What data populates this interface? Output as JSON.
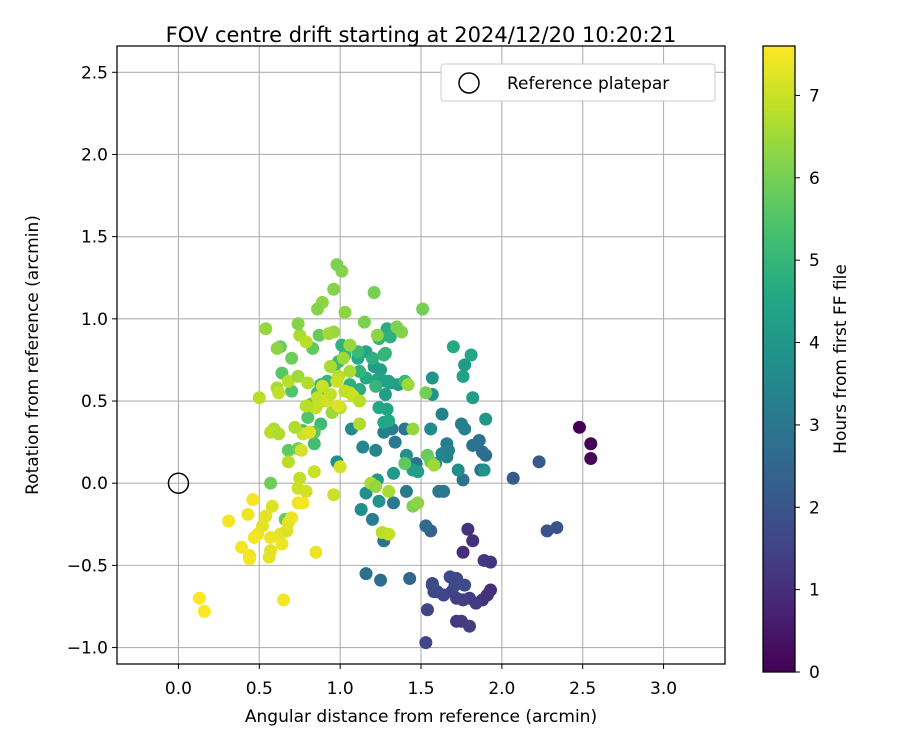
{
  "chart_data": {
    "type": "scatter",
    "title": "FOV centre drift starting at 2024/12/20 10:20:21",
    "xlabel": "Angular distance from reference (arcmin)",
    "ylabel": "Rotation from reference (arcmin)",
    "xlim": [
      -0.38,
      3.38
    ],
    "ylim": [
      -1.1,
      2.66
    ],
    "xticks": [
      "0.0",
      "0.5",
      "1.0",
      "1.5",
      "2.0",
      "2.5",
      "3.0"
    ],
    "yticks": [
      "−1.0",
      "−0.5",
      "0.0",
      "0.5",
      "1.0",
      "1.5",
      "2.0",
      "2.5"
    ],
    "grid": true,
    "legend": {
      "position": "top-right",
      "entries": [
        "Reference platepar"
      ]
    },
    "reference_point": {
      "x": 0.0,
      "y": 0.0
    },
    "colorbar": {
      "label": "Hours from first FF file",
      "range": [
        0,
        7.6
      ],
      "ticks": [
        "0",
        "1",
        "2",
        "3",
        "4",
        "5",
        "6",
        "7"
      ],
      "colormap": "viridis"
    },
    "points": [
      [
        2.48,
        0.34,
        0.0
      ],
      [
        2.55,
        0.24,
        0.05
      ],
      [
        2.55,
        0.15,
        0.1
      ],
      [
        2.34,
        -0.27,
        1.9
      ],
      [
        2.28,
        -0.29,
        1.95
      ],
      [
        2.23,
        0.13,
        2.1
      ],
      [
        2.07,
        0.03,
        2.2
      ],
      [
        1.93,
        -0.65,
        1.0
      ],
      [
        1.91,
        -0.68,
        1.05
      ],
      [
        1.88,
        -0.71,
        1.1
      ],
      [
        1.93,
        -0.48,
        1.15
      ],
      [
        1.89,
        -0.47,
        1.2
      ],
      [
        1.84,
        -0.73,
        1.25
      ],
      [
        1.8,
        -0.7,
        1.3
      ],
      [
        1.76,
        -0.71,
        1.35
      ],
      [
        1.72,
        -0.7,
        1.4
      ],
      [
        1.69,
        -0.66,
        1.45
      ],
      [
        1.64,
        -0.68,
        1.5
      ],
      [
        1.6,
        -0.66,
        1.55
      ],
      [
        1.57,
        -0.62,
        1.6
      ],
      [
        1.58,
        -0.66,
        1.62
      ],
      [
        1.72,
        -0.58,
        1.65
      ],
      [
        1.68,
        -0.57,
        1.68
      ],
      [
        1.71,
        -0.62,
        1.7
      ],
      [
        1.77,
        -0.62,
        1.72
      ],
      [
        1.72,
        -0.84,
        1.25
      ],
      [
        1.75,
        -0.84,
        1.3
      ],
      [
        1.8,
        -0.87,
        1.35
      ],
      [
        1.54,
        -0.77,
        1.5
      ],
      [
        1.53,
        -0.97,
        1.6
      ],
      [
        1.76,
        -0.42,
        1.0
      ],
      [
        1.79,
        -0.28,
        1.1
      ],
      [
        1.82,
        -0.35,
        1.05
      ],
      [
        1.57,
        -0.61,
        1.75
      ],
      [
        1.56,
        -0.29,
        2.4
      ],
      [
        1.43,
        -0.58,
        2.5
      ],
      [
        1.53,
        -0.26,
        2.6
      ],
      [
        1.25,
        -0.59,
        2.7
      ],
      [
        1.16,
        -0.55,
        2.8
      ],
      [
        1.28,
        -0.31,
        2.85
      ],
      [
        1.27,
        -0.35,
        2.9
      ],
      [
        1.33,
        -0.12,
        3.0
      ],
      [
        1.41,
        -0.05,
        3.1
      ],
      [
        1.2,
        -0.22,
        3.2
      ],
      [
        1.61,
        -0.05,
        3.0
      ],
      [
        1.64,
        -0.05,
        3.05
      ],
      [
        1.76,
        0.02,
        2.9
      ],
      [
        1.87,
        0.08,
        2.8
      ],
      [
        1.9,
        0.17,
        2.7
      ],
      [
        1.88,
        0.19,
        2.75
      ],
      [
        1.86,
        0.26,
        2.85
      ],
      [
        1.82,
        0.23,
        2.9
      ],
      [
        1.75,
        0.36,
        3.2
      ],
      [
        1.77,
        0.33,
        3.3
      ],
      [
        1.66,
        0.24,
        3.2
      ],
      [
        1.63,
        0.18,
        3.4
      ],
      [
        1.59,
        0.12,
        3.5
      ],
      [
        1.66,
        0.16,
        3.45
      ],
      [
        1.67,
        0.2,
        3.3
      ],
      [
        1.63,
        0.42,
        3.3
      ],
      [
        1.56,
        0.33,
        3.6
      ],
      [
        1.47,
        0.12,
        2.9
      ],
      [
        1.4,
        0.33,
        3.0
      ],
      [
        1.34,
        0.25,
        3.1
      ],
      [
        1.32,
        0.33,
        3.2
      ],
      [
        1.27,
        0.31,
        3.3
      ],
      [
        1.22,
        0.2,
        3.4
      ],
      [
        1.14,
        0.22,
        3.5
      ],
      [
        1.07,
        0.33,
        3.6
      ],
      [
        1.13,
        -0.16,
        3.7
      ],
      [
        1.16,
        -0.06,
        3.8
      ],
      [
        1.24,
        -0.11,
        3.9
      ],
      [
        1.23,
        0.02,
        4.0
      ],
      [
        1.33,
        0.06,
        4.1
      ],
      [
        0.98,
        0.13,
        3.7
      ],
      [
        1.41,
        0.17,
        3.8
      ],
      [
        1.48,
        0.07,
        4.3
      ],
      [
        1.45,
        0.08,
        4.2
      ],
      [
        1.73,
        0.08,
        3.7
      ],
      [
        1.89,
        0.08,
        3.8
      ],
      [
        1.9,
        0.39,
        4.0
      ],
      [
        1.82,
        0.52,
        4.2
      ],
      [
        1.77,
        0.72,
        4.1
      ],
      [
        1.76,
        0.65,
        4.4
      ],
      [
        1.81,
        0.78,
        4.5
      ],
      [
        1.7,
        0.83,
        4.6
      ],
      [
        1.57,
        0.64,
        4.0
      ],
      [
        1.57,
        0.54,
        3.9
      ],
      [
        1.42,
        0.6,
        4.0
      ],
      [
        1.36,
        0.6,
        4.1
      ],
      [
        1.31,
        0.61,
        4.2
      ],
      [
        1.28,
        0.54,
        4.3
      ],
      [
        1.29,
        0.45,
        4.4
      ],
      [
        1.24,
        0.46,
        4.5
      ],
      [
        1.3,
        0.38,
        4.6
      ],
      [
        1.27,
        0.37,
        4.5
      ],
      [
        1.3,
        0.62,
        4.3
      ],
      [
        1.23,
        0.63,
        4.5
      ],
      [
        1.25,
        0.69,
        4.3
      ],
      [
        1.28,
        0.62,
        4.4
      ],
      [
        1.21,
        0.71,
        4.2
      ],
      [
        1.16,
        0.64,
        4.6
      ],
      [
        1.12,
        0.57,
        4.7
      ],
      [
        1.06,
        0.6,
        4.8
      ],
      [
        1.12,
        0.68,
        4.9
      ],
      [
        1.11,
        0.76,
        4.6
      ],
      [
        1.16,
        0.8,
        4.5
      ],
      [
        1.2,
        0.76,
        4.8
      ],
      [
        1.24,
        0.88,
        4.9
      ],
      [
        1.29,
        0.94,
        4.7
      ],
      [
        1.31,
        0.89,
        4.8
      ],
      [
        1.28,
        0.79,
        5.0
      ],
      [
        1.22,
        0.59,
        5.0
      ],
      [
        1.01,
        0.84,
        4.9
      ],
      [
        1.03,
        0.78,
        5.0
      ],
      [
        0.99,
        0.74,
        5.1
      ],
      [
        0.96,
        0.71,
        5.2
      ],
      [
        0.92,
        0.62,
        5.1
      ],
      [
        0.88,
        0.6,
        5.0
      ],
      [
        0.86,
        0.55,
        5.3
      ],
      [
        0.88,
        0.36,
        5.2
      ],
      [
        0.84,
        0.24,
        5.3
      ],
      [
        0.77,
        0.32,
        5.4
      ],
      [
        0.8,
        0.4,
        5.5
      ],
      [
        0.82,
        0.48,
        5.6
      ],
      [
        0.7,
        0.56,
        5.5
      ],
      [
        0.64,
        0.67,
        5.6
      ],
      [
        0.63,
        0.83,
        5.8
      ],
      [
        0.7,
        0.76,
        5.9
      ],
      [
        0.83,
        0.82,
        5.7
      ],
      [
        0.87,
        0.9,
        5.8
      ],
      [
        0.84,
        0.31,
        5.6
      ],
      [
        0.68,
        0.2,
        5.7
      ],
      [
        0.74,
        0.21,
        5.9
      ],
      [
        0.57,
        0.0,
        5.9
      ],
      [
        0.66,
        -0.22,
        5.8
      ],
      [
        1.4,
        0.62,
        5.1
      ],
      [
        1.27,
        0.78,
        5.0
      ],
      [
        1.11,
        0.8,
        5.1
      ],
      [
        1.4,
        0.12,
        5.7
      ],
      [
        1.54,
        0.17,
        5.8
      ],
      [
        1.56,
        0.13,
        5.9
      ],
      [
        1.45,
        -0.14,
        6.1
      ],
      [
        1.53,
        0.55,
        6.0
      ],
      [
        1.51,
        1.06,
        6.0
      ],
      [
        1.38,
        0.92,
        6.2
      ],
      [
        1.35,
        0.95,
        6.1
      ],
      [
        1.23,
        0.9,
        6.3
      ],
      [
        1.21,
        1.16,
        6.0
      ],
      [
        1.15,
        0.98,
        6.1
      ],
      [
        1.03,
        1.04,
        6.3
      ],
      [
        1.01,
        1.29,
        6.2
      ],
      [
        0.98,
        1.33,
        6.1
      ],
      [
        0.89,
        1.1,
        6.3
      ],
      [
        0.86,
        1.06,
        6.2
      ],
      [
        0.96,
        1.18,
        6.2
      ],
      [
        0.96,
        0.92,
        6.4
      ],
      [
        0.94,
        0.71,
        6.6
      ],
      [
        0.99,
        0.65,
        6.8
      ],
      [
        1.03,
        0.56,
        6.9
      ],
      [
        1.0,
        0.46,
        6.7
      ],
      [
        0.95,
        0.43,
        6.5
      ],
      [
        0.9,
        0.5,
        6.6
      ],
      [
        0.85,
        0.46,
        6.9
      ],
      [
        0.79,
        0.47,
        6.8
      ],
      [
        0.77,
        0.3,
        7.0
      ],
      [
        0.72,
        0.34,
        6.7
      ],
      [
        0.59,
        0.33,
        6.6
      ],
      [
        0.57,
        0.31,
        6.8
      ],
      [
        0.62,
        0.3,
        6.7
      ],
      [
        0.5,
        0.52,
        6.8
      ],
      [
        0.61,
        0.58,
        6.6
      ],
      [
        0.62,
        0.55,
        6.9
      ],
      [
        0.68,
        0.62,
        6.8
      ],
      [
        0.74,
        0.65,
        6.5
      ],
      [
        0.75,
        0.9,
        6.6
      ],
      [
        0.79,
        0.86,
        6.8
      ],
      [
        0.8,
        0.61,
        6.7
      ],
      [
        0.86,
        0.52,
        6.9
      ],
      [
        0.89,
        0.59,
        7.0
      ],
      [
        0.92,
        0.5,
        7.1
      ],
      [
        0.94,
        0.54,
        6.9
      ],
      [
        0.98,
        0.62,
        7.0
      ],
      [
        0.99,
        0.47,
        7.2
      ],
      [
        1.06,
        0.55,
        6.9
      ],
      [
        1.08,
        0.53,
        7.0
      ],
      [
        1.12,
        0.5,
        6.8
      ],
      [
        1.02,
        0.76,
        6.5
      ],
      [
        1.06,
        0.84,
        6.4
      ],
      [
        0.61,
        0.82,
        6.3
      ],
      [
        0.54,
        0.94,
        6.4
      ],
      [
        0.74,
        0.97,
        6.2
      ],
      [
        0.93,
        0.91,
        6.5
      ],
      [
        1.06,
        0.68,
        6.6
      ],
      [
        1.12,
        0.36,
        6.7
      ],
      [
        1.19,
        0.0,
        6.6
      ],
      [
        1.45,
        0.33,
        6.4
      ],
      [
        1.42,
        0.6,
        6.5
      ],
      [
        1.3,
        -0.05,
        6.6
      ],
      [
        1.22,
        -0.02,
        6.4
      ],
      [
        1.48,
        -0.12,
        6.3
      ],
      [
        1.58,
        0.11,
        6.5
      ],
      [
        0.68,
        0.13,
        6.8
      ],
      [
        0.75,
        0.03,
        6.9
      ],
      [
        0.74,
        -0.03,
        7.0
      ],
      [
        0.79,
        -0.05,
        7.1
      ],
      [
        0.84,
        0.07,
        7.0
      ],
      [
        0.81,
        0.31,
        7.2
      ],
      [
        0.76,
        0.2,
        7.1
      ],
      [
        0.96,
        -0.07,
        7.0
      ],
      [
        1.0,
        0.1,
        7.1
      ],
      [
        1.26,
        -0.3,
        6.8
      ],
      [
        1.3,
        -0.31,
        6.9
      ],
      [
        0.58,
        -0.14,
        7.2
      ],
      [
        0.54,
        -0.2,
        7.3
      ],
      [
        0.63,
        -0.31,
        7.3
      ],
      [
        0.67,
        -0.29,
        7.2
      ],
      [
        0.68,
        -0.24,
        7.3
      ],
      [
        0.7,
        -0.21,
        7.4
      ],
      [
        0.74,
        -0.12,
        7.4
      ],
      [
        0.77,
        -0.12,
        7.5
      ],
      [
        0.57,
        -0.33,
        7.4
      ],
      [
        0.52,
        -0.26,
        7.3
      ],
      [
        0.49,
        -0.31,
        7.4
      ],
      [
        0.46,
        -0.1,
        7.5
      ],
      [
        0.43,
        -0.19,
        7.4
      ],
      [
        0.47,
        -0.33,
        7.5
      ],
      [
        0.44,
        -0.44,
        7.4
      ],
      [
        0.44,
        -0.46,
        7.5
      ],
      [
        0.39,
        -0.39,
        7.5
      ],
      [
        0.31,
        -0.23,
        7.5
      ],
      [
        0.56,
        -0.45,
        7.3
      ],
      [
        0.57,
        -0.41,
        7.3
      ],
      [
        0.64,
        -0.37,
        7.4
      ],
      [
        0.65,
        -0.71,
        7.5
      ],
      [
        0.85,
        -0.42,
        7.4
      ],
      [
        0.13,
        -0.7,
        7.6
      ],
      [
        0.16,
        -0.78,
        7.6
      ]
    ]
  }
}
